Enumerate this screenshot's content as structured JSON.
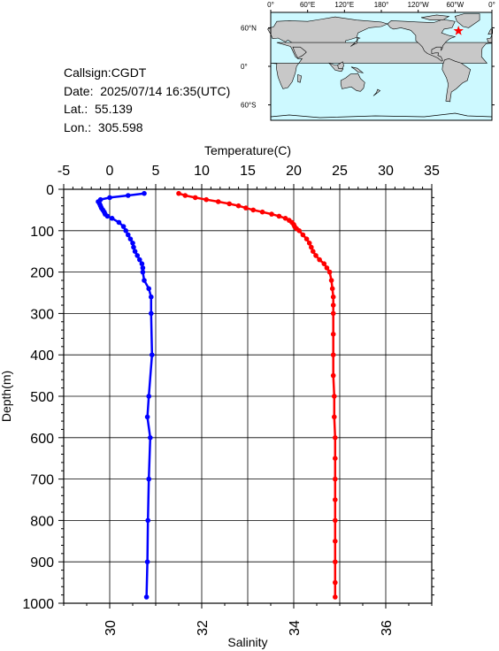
{
  "info": {
    "callsign": "Callsign:CGDT",
    "date": "Date:  2025/07/14 16:35(UTC)",
    "lat": "Lat.:  55.139",
    "lon": "Lon.:  305.598"
  },
  "map": {
    "top_labels": [
      "0°",
      "60°E",
      "120°E",
      "180°",
      "120°W",
      "60°W",
      "0°"
    ],
    "right_labels": [
      "60°N",
      "0°",
      "60°S"
    ],
    "ocean_color": "#cdf9ff",
    "land_color": "#c8c8c8",
    "marker_color": "#ff0000",
    "marker": {
      "lon": 305.598,
      "lat": 55.139
    }
  },
  "chart_data": {
    "type": "line",
    "ylabel": "Depth(m)",
    "ylim": [
      1000,
      0
    ],
    "yticks": [
      "0",
      "100",
      "200",
      "300",
      "400",
      "500",
      "600",
      "700",
      "800",
      "900",
      "1000"
    ],
    "temperature_axis": {
      "label": "Temperature(C)",
      "position": "top",
      "range": [
        -5,
        35
      ],
      "ticks": [
        "-5",
        "0",
        "5",
        "10",
        "15",
        "20",
        "25",
        "30",
        "35"
      ]
    },
    "salinity_axis": {
      "label": "Salinity",
      "position": "bottom",
      "range": [
        29,
        37
      ],
      "ticks": [
        "30",
        "32",
        "34",
        "36"
      ]
    },
    "grid": true,
    "series": [
      {
        "axis": "temperature",
        "color": "#ff0000",
        "depth": [
          10,
          15,
          20,
          25,
          30,
          35,
          40,
          45,
          50,
          55,
          60,
          65,
          70,
          75,
          80,
          85,
          90,
          95,
          100,
          110,
          120,
          130,
          140,
          150,
          160,
          170,
          180,
          190,
          200,
          220,
          240,
          260,
          280,
          300,
          350,
          400,
          450,
          500,
          550,
          600,
          650,
          700,
          750,
          800,
          850,
          900,
          950,
          985
        ],
        "values": [
          7.5,
          8.2,
          9.3,
          10.5,
          11.8,
          13.0,
          14.0,
          14.8,
          15.6,
          16.6,
          17.6,
          18.4,
          19.1,
          19.5,
          19.8,
          20.0,
          20.1,
          20.3,
          20.6,
          21.0,
          21.4,
          21.7,
          21.9,
          22.1,
          22.4,
          22.8,
          23.3,
          23.6,
          23.9,
          24.1,
          24.2,
          24.3,
          24.3,
          24.3,
          24.3,
          24.3,
          24.3,
          24.4,
          24.4,
          24.5,
          24.5,
          24.5,
          24.5,
          24.5,
          24.5,
          24.5,
          24.5,
          24.5
        ]
      },
      {
        "axis": "salinity",
        "color": "#0000ff",
        "depth": [
          10,
          15,
          20,
          25,
          30,
          35,
          40,
          45,
          50,
          55,
          60,
          65,
          70,
          80,
          90,
          100,
          110,
          120,
          130,
          140,
          150,
          160,
          170,
          180,
          190,
          200,
          220,
          240,
          260,
          300,
          400,
          500,
          550,
          600,
          700,
          800,
          900,
          985
        ],
        "values": [
          30.75,
          30.4,
          30.0,
          29.8,
          29.75,
          29.78,
          29.8,
          29.82,
          29.85,
          29.88,
          29.9,
          29.95,
          30.05,
          30.2,
          30.3,
          30.35,
          30.4,
          30.45,
          30.5,
          30.52,
          30.55,
          30.6,
          30.65,
          30.7,
          30.72,
          30.72,
          30.75,
          30.85,
          30.9,
          30.9,
          30.92,
          30.85,
          30.82,
          30.88,
          30.85,
          30.83,
          30.82,
          30.8
        ]
      }
    ]
  }
}
